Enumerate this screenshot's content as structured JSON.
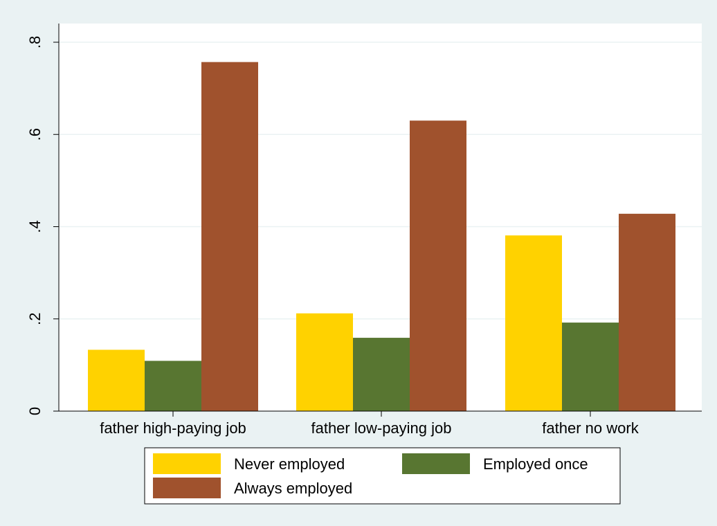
{
  "chart_data": {
    "type": "bar",
    "title": "",
    "xlabel": "",
    "ylabel": "",
    "categories": [
      "father high-paying job",
      "father low-paying job",
      "father no work"
    ],
    "series": [
      {
        "name": "Never employed",
        "color": "#FFD200",
        "values": [
          0.133,
          0.212,
          0.381
        ]
      },
      {
        "name": "Employed once",
        "color": "#587631",
        "values": [
          0.109,
          0.159,
          0.192
        ]
      },
      {
        "name": "Always employed",
        "color": "#A0522D",
        "values": [
          0.757,
          0.63,
          0.428
        ]
      }
    ],
    "ylim": [
      0,
      0.8
    ],
    "yticks": [
      {
        "value": 0,
        "label": "0"
      },
      {
        "value": 0.2,
        "label": ".2"
      },
      {
        "value": 0.4,
        "label": ".4"
      },
      {
        "value": 0.6,
        "label": ".6"
      },
      {
        "value": 0.8,
        "label": ".8"
      }
    ],
    "grid": true,
    "legend_position": "bottom",
    "colors": {
      "outer_background": "#EAF2F3",
      "plot_background": "#FFFFFF",
      "grid": "#EAF2F3"
    }
  }
}
